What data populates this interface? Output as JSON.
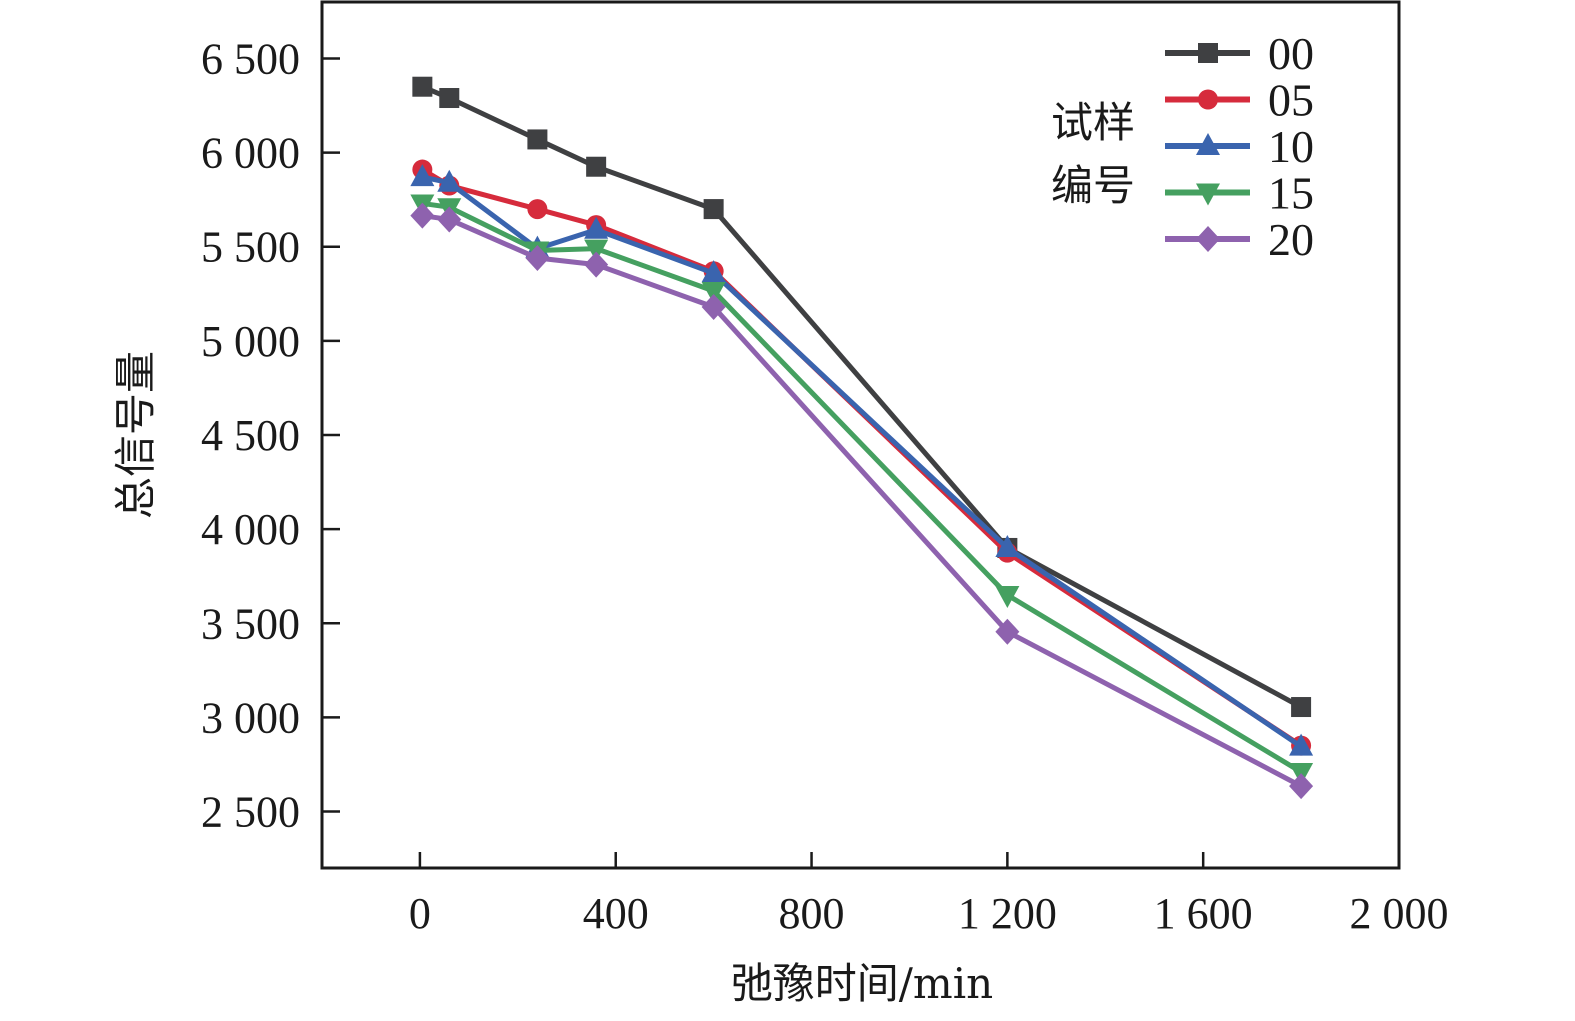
{
  "chart_data": {
    "type": "line",
    "title": "",
    "xlabel": "弛豫时间/min",
    "ylabel": "总信号量",
    "xlim": [
      -200,
      2000
    ],
    "ylim": [
      2200,
      6800
    ],
    "xticks": [
      0,
      400,
      800,
      1200,
      1600,
      2000
    ],
    "xtick_labels": [
      "0",
      "400",
      "800",
      "1 200",
      "1 600",
      "2 000"
    ],
    "yticks": [
      2500,
      3000,
      3500,
      4000,
      4500,
      5000,
      5500,
      6000,
      6500
    ],
    "ytick_labels": [
      "2 500",
      "3 000",
      "3 500",
      "4 000",
      "4 500",
      "5 000",
      "5 500",
      "6 000",
      "6 500"
    ],
    "grid": false,
    "legend": {
      "title_lines": [
        "试样",
        "编号"
      ],
      "placement": "top-right"
    },
    "x": [
      5,
      60,
      240,
      360,
      600,
      1200,
      1800
    ],
    "series": [
      {
        "name": "00",
        "color": "#3f4042",
        "marker": "square",
        "values": [
          6350,
          6290,
          6070,
          5925,
          5700,
          3900,
          3055
        ]
      },
      {
        "name": "05",
        "color": "#d62b3c",
        "marker": "circle",
        "values": [
          5910,
          5825,
          5700,
          5615,
          5370,
          3875,
          2850
        ]
      },
      {
        "name": "10",
        "color": "#3a64ae",
        "marker": "triangle-up",
        "values": [
          5870,
          5840,
          5490,
          5590,
          5360,
          3900,
          2845
        ]
      },
      {
        "name": "15",
        "color": "#45a060",
        "marker": "triangle-down",
        "values": [
          5730,
          5710,
          5480,
          5490,
          5265,
          3650,
          2710
        ]
      },
      {
        "name": "20",
        "color": "#8e62ae",
        "marker": "diamond",
        "values": [
          5665,
          5645,
          5440,
          5405,
          5180,
          3455,
          2635
        ]
      }
    ]
  }
}
